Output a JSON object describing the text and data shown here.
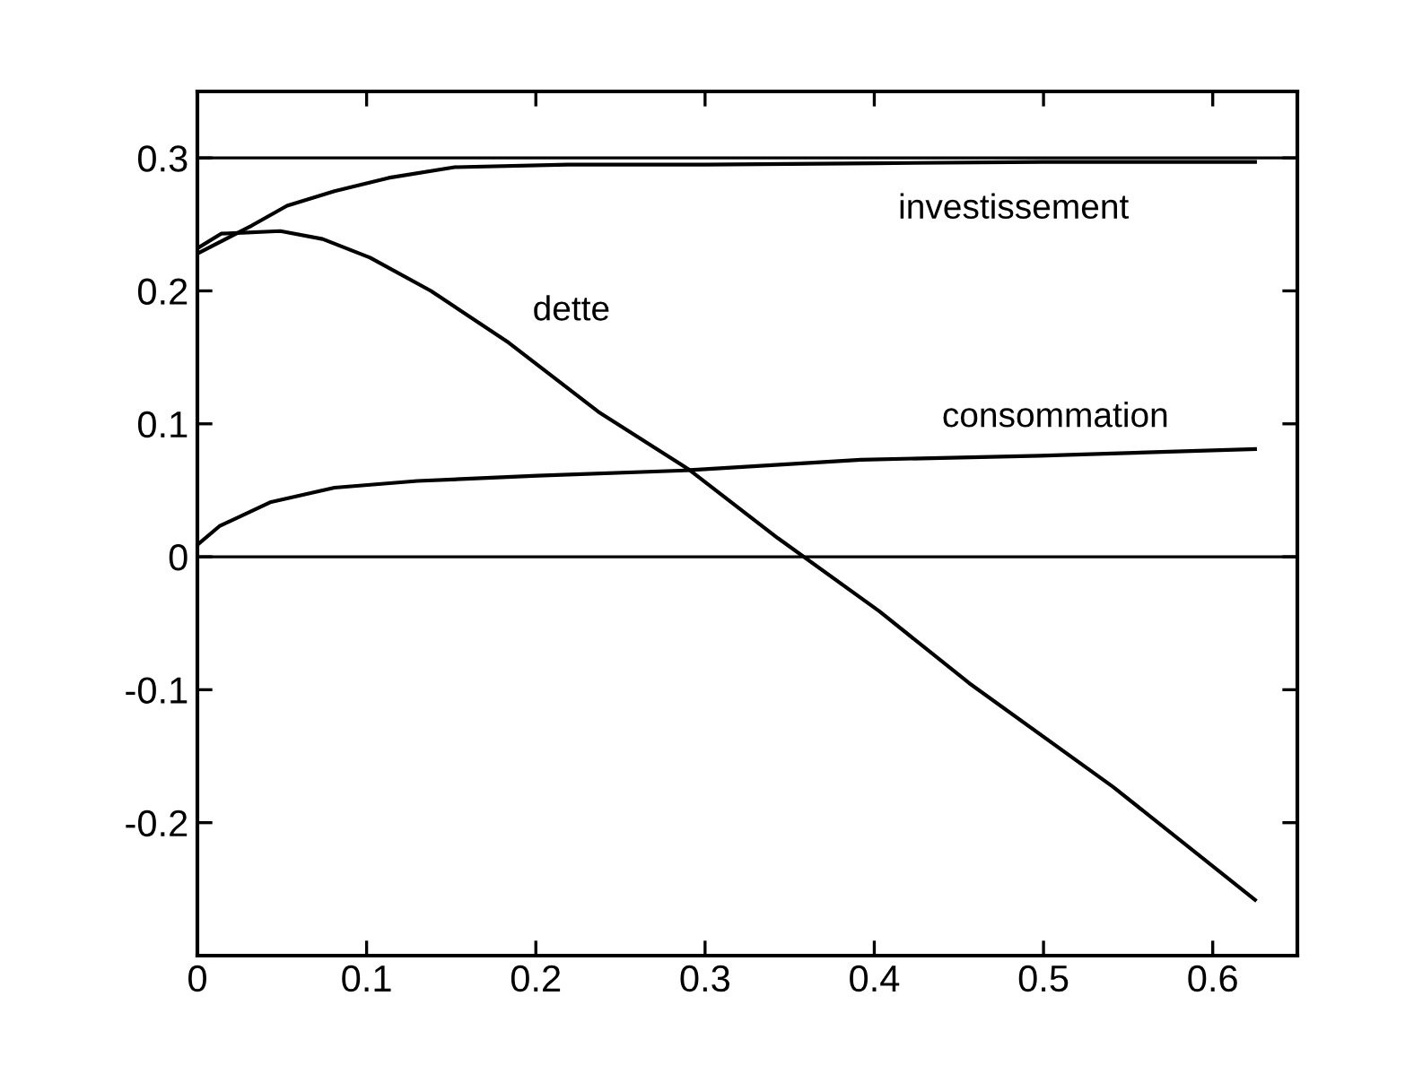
{
  "chart_data": {
    "type": "line",
    "xlim": [
      0,
      0.65
    ],
    "ylim": [
      -0.3,
      0.35
    ],
    "xticks": [
      0,
      0.1,
      0.2,
      0.3,
      0.4,
      0.5,
      0.6
    ],
    "yticks": [
      -0.2,
      -0.1,
      0,
      0.1,
      0.2,
      0.3
    ],
    "grid": false,
    "legend": false,
    "marker": "none",
    "line_style": "solid",
    "ref_lines": [
      {
        "axis": "y",
        "value": 0,
        "color": "#000000"
      },
      {
        "axis": "y",
        "value": 0.3,
        "color": "#000000"
      }
    ],
    "series": [
      {
        "name": "investissement",
        "color": "#000000",
        "x": [
          0,
          0.032,
          0.053,
          0.081,
          0.113,
          0.152,
          0.219,
          0.3,
          0.4,
          0.5,
          0.625
        ],
        "values": [
          0.228,
          0.249,
          0.264,
          0.275,
          0.285,
          0.293,
          0.295,
          0.295,
          0.296,
          0.297,
          0.297
        ]
      },
      {
        "name": "dette",
        "color": "#000000",
        "x": [
          0,
          0.014,
          0.049,
          0.074,
          0.102,
          0.138,
          0.184,
          0.237,
          0.29,
          0.343,
          0.403,
          0.456,
          0.541,
          0.625
        ],
        "values": [
          0.232,
          0.243,
          0.245,
          0.239,
          0.225,
          0.2,
          0.161,
          0.109,
          0.066,
          0.014,
          -0.041,
          -0.095,
          -0.173,
          -0.258
        ]
      },
      {
        "name": "consommation",
        "color": "#000000",
        "x": [
          0,
          0.013,
          0.043,
          0.081,
          0.13,
          0.201,
          0.289,
          0.392,
          0.498,
          0.625
        ],
        "values": [
          0.009,
          0.023,
          0.041,
          0.052,
          0.057,
          0.061,
          0.065,
          0.073,
          0.076,
          0.081
        ]
      }
    ]
  }
}
